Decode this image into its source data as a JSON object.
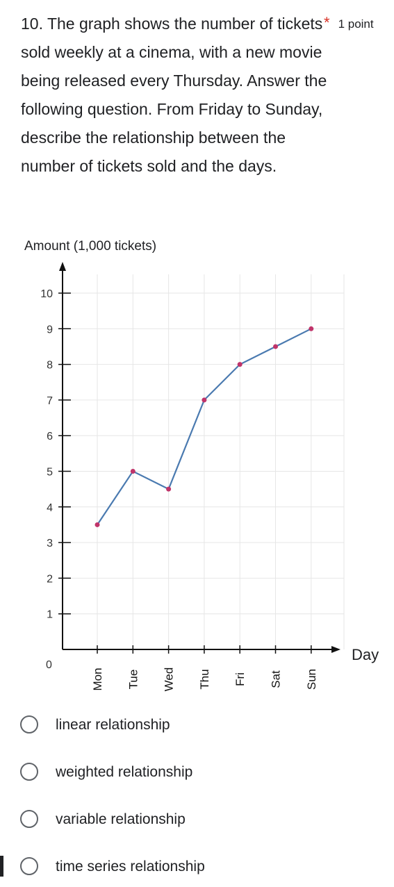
{
  "question": {
    "text": "10. The graph shows the number of tickets sold weekly at a cinema, with a new movie being released every Thursday. Answer the following question. From Friday to Sunday, describe the relationship between the number of tickets sold and the days.",
    "required_mark": "*",
    "points": "1 point"
  },
  "chart_data": {
    "type": "line",
    "ylabel": "Amount (1,000 tickets)",
    "xlabel": "Day",
    "origin_label": "0",
    "y_ticks": [
      "1",
      "2",
      "3",
      "4",
      "5",
      "6",
      "7",
      "8",
      "9",
      "10"
    ],
    "ylim": [
      0,
      10.5
    ],
    "categories": [
      "Mon",
      "Tue",
      "Wed",
      "Thu",
      "Fri",
      "Sat",
      "Sun"
    ],
    "series": [
      {
        "values": [
          3.5,
          5.0,
          4.5,
          7.0,
          8.0,
          8.5,
          9.0
        ]
      }
    ],
    "grid": true,
    "colors": {
      "line": "#4a7ab0",
      "point": "#c0346a"
    }
  },
  "options": [
    {
      "label": "linear relationship"
    },
    {
      "label": "weighted relationship"
    },
    {
      "label": "variable relationship"
    },
    {
      "label": "time series relationship"
    }
  ]
}
